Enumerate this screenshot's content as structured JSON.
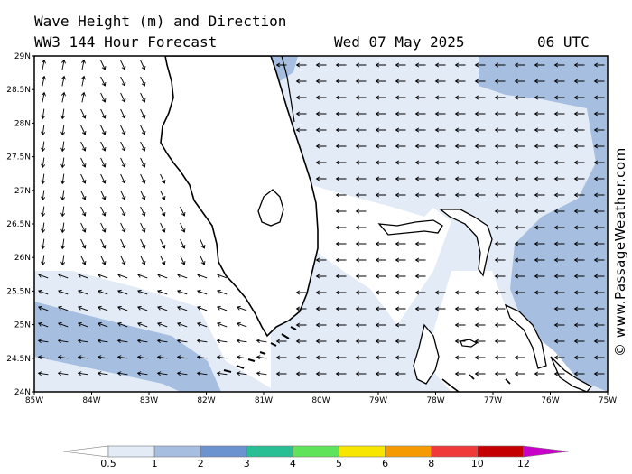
{
  "header": {
    "title_line1": "Wave Height (m) and Direction",
    "title_line2": "WW3 144 Hour Forecast",
    "date": "Wed 07 May 2025",
    "time": "06 UTC"
  },
  "credit": "© www.PassageWeather.com",
  "map": {
    "lon_range": [
      -85,
      -75
    ],
    "lat_range": [
      24,
      29
    ],
    "lon_labels": [
      "85W",
      "84W",
      "83W",
      "82W",
      "81W",
      "80W",
      "79W",
      "78W",
      "77W",
      "76W",
      "75W"
    ],
    "lat_labels": [
      "29N",
      "28.5N",
      "28N",
      "27.5N",
      "27N",
      "26.5N",
      "26N",
      "25.5N",
      "25N",
      "24.5N",
      "24N"
    ],
    "colors": {
      "land": "#ffffff",
      "sea_low": "#e3ebf7",
      "sea_mid": "#a6bfe1",
      "coast": "#000000"
    }
  },
  "legend": {
    "ticks": [
      "0.5",
      "1",
      "2",
      "3",
      "4",
      "5",
      "6",
      "8",
      "10",
      "12"
    ],
    "colors": [
      "#ffffff",
      "#e3ebf7",
      "#a6bfe1",
      "#6b93cf",
      "#29bf94",
      "#5fe35a",
      "#f6e600",
      "#f59a00",
      "#f03a3a",
      "#c40000",
      "#c800c8"
    ]
  }
}
